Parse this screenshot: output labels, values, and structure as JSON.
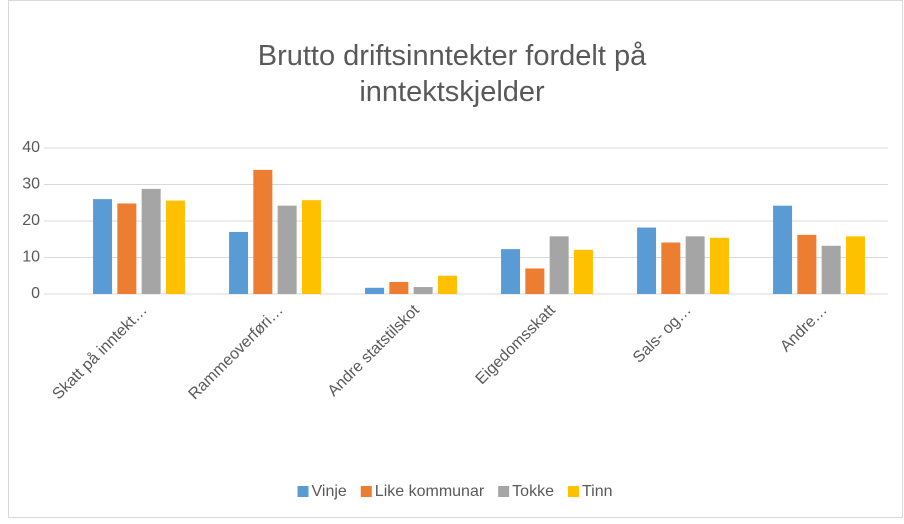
{
  "chart_data": {
    "type": "bar",
    "title": "Brutto driftsinntekter fordelt på inntektskjelder",
    "categories": [
      "Skatt på inntekt…",
      "Rammeoverføri…",
      "Andre statstilskot",
      "Eigedomsskatt",
      "Sals- og…",
      "Andre…"
    ],
    "series": [
      {
        "name": "Vinje",
        "color": "#5b9bd5",
        "values": [
          26,
          17,
          1.7,
          12.3,
          18.2,
          24.2
        ]
      },
      {
        "name": "Like kommunar",
        "color": "#ed7d31",
        "values": [
          24.8,
          34,
          3.3,
          7,
          14.1,
          16.2
        ]
      },
      {
        "name": "Tokke",
        "color": "#a5a5a5",
        "values": [
          28.8,
          24.2,
          1.9,
          15.8,
          15.8,
          13.2
        ]
      },
      {
        "name": "Tinn",
        "color": "#ffc000",
        "values": [
          25.6,
          25.7,
          5,
          12.1,
          15.4,
          15.8
        ]
      }
    ],
    "ylim": [
      0,
      40
    ],
    "yticks": [
      0,
      10,
      20,
      30,
      40
    ],
    "grid": true,
    "legend": "bottom"
  }
}
